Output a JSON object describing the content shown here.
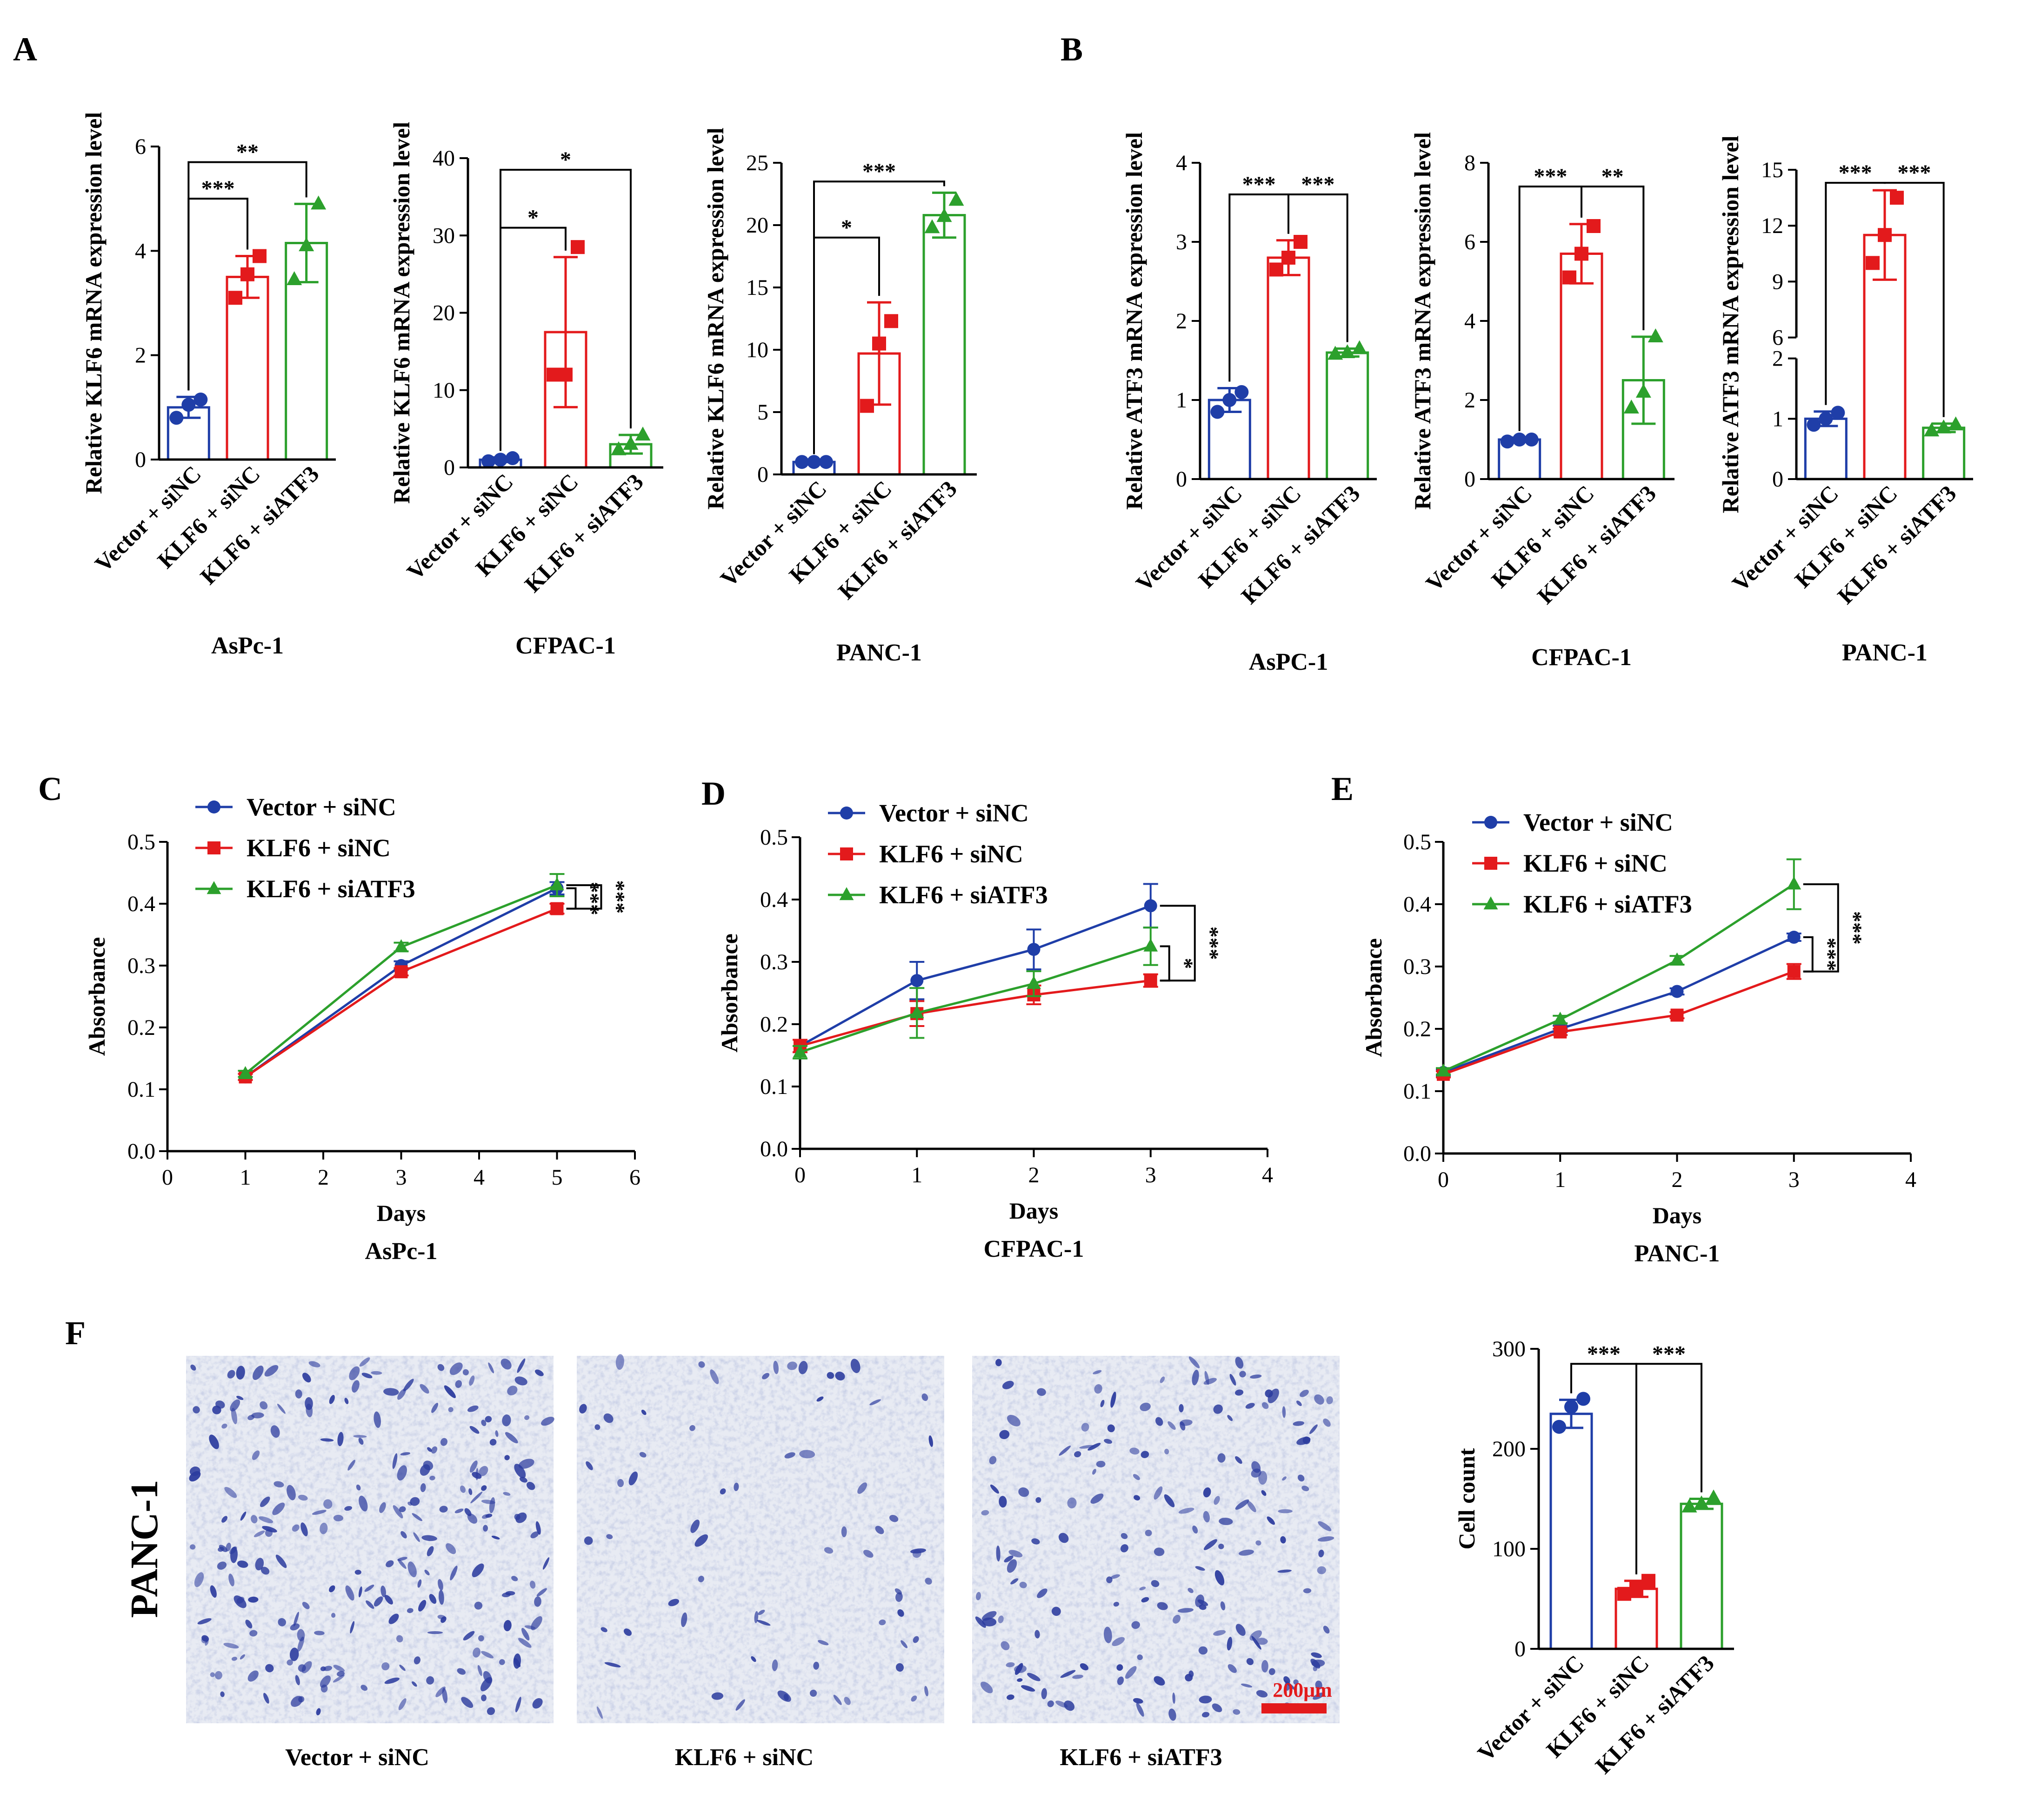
{
  "colors": {
    "vector_siNC": "#1f3ea8",
    "klf6_siNC": "#e31a1c",
    "klf6_siATF3": "#2ca02c",
    "scale_bar": "#e31a1c",
    "stain": "#2c3c9e"
  },
  "markers": {
    "vector_siNC": "circle",
    "klf6_siNC": "square",
    "klf6_siATF3": "triangle"
  },
  "panels": {
    "A": "A",
    "B": "B",
    "C": "C",
    "D": "D",
    "E": "E",
    "F": "F"
  },
  "conditions": [
    "Vector + siNC",
    "KLF6 + siNC",
    "KLF6 + siATF3"
  ],
  "micrograph": {
    "row_label": "PANC-1",
    "scale_bar_label": "200μm",
    "image_labels": [
      "Vector + siNC",
      "KLF6 + siNC",
      "KLF6 + siATF3"
    ]
  },
  "chart_data": [
    {
      "id": "A1",
      "panel": "A",
      "type": "bar",
      "ylabel": "Relative KLF6 mRNA expression level",
      "xlabel": "AsPc-1",
      "categories": [
        "Vector + siNC",
        "KLF6 + siNC",
        "KLF6 + siATF3"
      ],
      "values": [
        1.0,
        3.5,
        4.15
      ],
      "errors": [
        0.2,
        0.4,
        0.75
      ],
      "points": [
        [
          0.8,
          1.05,
          1.15
        ],
        [
          3.1,
          3.55,
          3.9
        ],
        [
          3.45,
          4.1,
          4.9
        ]
      ],
      "ylim": [
        0,
        6
      ],
      "yticks": [
        0,
        2,
        4,
        6
      ],
      "significance": [
        {
          "from": 0,
          "to": 1,
          "label": "***",
          "y": 5.0
        },
        {
          "from": 0,
          "to": 2,
          "label": "**",
          "y": 5.7
        }
      ]
    },
    {
      "id": "A2",
      "panel": "A",
      "type": "bar",
      "ylabel": "Relative KLF6 mRNA expression level",
      "xlabel": "CFPAC-1",
      "categories": [
        "Vector + siNC",
        "KLF6 + siNC",
        "KLF6 + siATF3"
      ],
      "values": [
        1.0,
        17.5,
        3.0
      ],
      "errors": [
        0.3,
        9.7,
        1.2
      ],
      "points": [
        [
          0.8,
          1.0,
          1.2
        ],
        [
          12.0,
          12.0,
          28.5
        ],
        [
          2.3,
          3.0,
          4.2
        ]
      ],
      "ylim": [
        0,
        40
      ],
      "yticks": [
        0,
        10,
        20,
        30,
        40
      ],
      "significance": [
        {
          "from": 0,
          "to": 1,
          "label": "*",
          "y": 31
        },
        {
          "from": 0,
          "to": 2,
          "label": "*",
          "y": 38.5
        }
      ]
    },
    {
      "id": "A3",
      "panel": "A",
      "type": "bar",
      "ylabel": "Relative KLF6 mRNA expression level",
      "xlabel": "PANC-1",
      "categories": [
        "Vector + siNC",
        "KLF6 + siNC",
        "KLF6 + siATF3"
      ],
      "values": [
        1.0,
        9.7,
        20.8
      ],
      "errors": [
        0.1,
        4.1,
        1.8
      ],
      "points": [
        [
          1.0,
          1.0,
          1.0
        ],
        [
          5.5,
          10.5,
          12.3
        ],
        [
          19.8,
          20.7,
          22.0
        ]
      ],
      "ylim": [
        0,
        25
      ],
      "yticks": [
        0,
        5,
        10,
        15,
        20,
        25
      ],
      "significance": [
        {
          "from": 0,
          "to": 1,
          "label": "*",
          "y": 19
        },
        {
          "from": 0,
          "to": 2,
          "label": "***",
          "y": 23.5
        }
      ]
    },
    {
      "id": "B1",
      "panel": "B",
      "type": "bar",
      "ylabel": "Relative ATF3 mRNA expression level",
      "xlabel": "AsPC-1",
      "categories": [
        "Vector + siNC",
        "KLF6 + siNC",
        "KLF6 + siATF3"
      ],
      "values": [
        1.0,
        2.8,
        1.6
      ],
      "errors": [
        0.15,
        0.22,
        0.05
      ],
      "points": [
        [
          0.85,
          1.0,
          1.1
        ],
        [
          2.65,
          2.8,
          3.0
        ],
        [
          1.58,
          1.6,
          1.65
        ]
      ],
      "ylim": [
        0,
        4
      ],
      "yticks": [
        0,
        1,
        2,
        3,
        4
      ],
      "significance": [
        {
          "from": 0,
          "to": 1,
          "label": "***",
          "y": 3.6
        },
        {
          "from": 1,
          "to": 2,
          "label": "***",
          "y": 3.6
        }
      ]
    },
    {
      "id": "B2",
      "panel": "B",
      "type": "bar",
      "ylabel": "Relative ATF3 mRNA expression level",
      "xlabel": "CFPAC-1",
      "categories": [
        "Vector + siNC",
        "KLF6 + siNC",
        "KLF6 + siATF3"
      ],
      "values": [
        1.0,
        5.7,
        2.5
      ],
      "errors": [
        0.05,
        0.75,
        1.1
      ],
      "points": [
        [
          0.95,
          1.0,
          1.0
        ],
        [
          5.1,
          5.7,
          6.4
        ],
        [
          1.8,
          2.2,
          3.6
        ]
      ],
      "ylim": [
        0,
        8
      ],
      "yticks": [
        0,
        2,
        4,
        6,
        8
      ],
      "significance": [
        {
          "from": 0,
          "to": 1,
          "label": "***",
          "y": 7.4
        },
        {
          "from": 1,
          "to": 2,
          "label": "**",
          "y": 7.4
        }
      ]
    },
    {
      "id": "B3",
      "panel": "B",
      "type": "bar",
      "ylabel": "Relative ATF3 mRNA expression level",
      "xlabel": "PANC-1",
      "categories": [
        "Vector + siNC",
        "KLF6 + siNC",
        "KLF6 + siATF3"
      ],
      "values": [
        1.0,
        11.5,
        0.85
      ],
      "errors": [
        0.12,
        2.4,
        0.07
      ],
      "points": [
        [
          0.9,
          1.0,
          1.1
        ],
        [
          10.0,
          11.5,
          13.5
        ],
        [
          0.8,
          0.85,
          0.9
        ]
      ],
      "axis_break": true,
      "ylim_lower": [
        0,
        2
      ],
      "yticks_lower": [
        0,
        1,
        2
      ],
      "ylim_upper": [
        6,
        15
      ],
      "yticks_upper": [
        6,
        9,
        12,
        15
      ],
      "significance": [
        {
          "from": 0,
          "to": 1,
          "label": "***",
          "y": 14.3
        },
        {
          "from": 1,
          "to": 2,
          "label": "***",
          "y": 14.3
        }
      ]
    },
    {
      "id": "C",
      "panel": "C",
      "type": "line",
      "ylabel": "Absorbance",
      "xlabel": "Days",
      "subtitle": "AsPc-1",
      "x": [
        1,
        3,
        5
      ],
      "xlim": [
        0,
        6
      ],
      "xticks": [
        0,
        1,
        2,
        3,
        4,
        5,
        6
      ],
      "ylim": [
        0,
        0.5
      ],
      "yticks": [
        "0.0",
        "0.1",
        "0.2",
        "0.3",
        "0.4",
        "0.5"
      ],
      "series": [
        {
          "name": "Vector + siNC",
          "values": [
            0.12,
            0.3,
            0.425
          ],
          "errors": [
            0.005,
            0.007,
            0.01
          ]
        },
        {
          "name": "KLF6 + siNC",
          "values": [
            0.12,
            0.29,
            0.392
          ],
          "errors": [
            0.005,
            0.006,
            0.008
          ]
        },
        {
          "name": "KLF6 + siATF3",
          "values": [
            0.125,
            0.33,
            0.43
          ],
          "errors": [
            0.005,
            0.007,
            0.018
          ]
        }
      ],
      "significance": [
        {
          "label": "***",
          "between": [
            "Vector + siNC",
            "KLF6 + siNC"
          ]
        },
        {
          "label": "***",
          "between": [
            "KLF6 + siATF3",
            "KLF6 + siNC"
          ]
        }
      ]
    },
    {
      "id": "D",
      "panel": "D",
      "type": "line",
      "ylabel": "Absorbance",
      "xlabel": "Days",
      "subtitle": "CFPAC-1",
      "x": [
        0,
        1,
        2,
        3
      ],
      "xlim": [
        0,
        4
      ],
      "xticks": [
        0,
        1,
        2,
        3,
        4
      ],
      "ylim": [
        0,
        0.5
      ],
      "yticks": [
        "0.0",
        "0.1",
        "0.2",
        "0.3",
        "0.4",
        "0.5"
      ],
      "series": [
        {
          "name": "Vector + siNC",
          "values": [
            0.165,
            0.27,
            0.32,
            0.39
          ],
          "errors": [
            0.01,
            0.03,
            0.032,
            0.035
          ]
        },
        {
          "name": "KLF6 + siNC",
          "values": [
            0.165,
            0.217,
            0.247,
            0.27
          ],
          "errors": [
            0.01,
            0.02,
            0.015,
            0.01
          ]
        },
        {
          "name": "KLF6 + siATF3",
          "values": [
            0.155,
            0.218,
            0.265,
            0.325
          ],
          "errors": [
            0.01,
            0.04,
            0.02,
            0.03
          ]
        }
      ],
      "significance": [
        {
          "label": "*",
          "between": [
            "KLF6 + siATF3",
            "KLF6 + siNC"
          ]
        },
        {
          "label": "***",
          "between": [
            "Vector + siNC",
            "KLF6 + siNC"
          ]
        }
      ]
    },
    {
      "id": "E",
      "panel": "E",
      "type": "line",
      "ylabel": "Absorbance",
      "xlabel": "Days",
      "subtitle": "PANC-1",
      "x": [
        0,
        1,
        2,
        3
      ],
      "xlim": [
        0,
        4
      ],
      "xticks": [
        0,
        1,
        2,
        3,
        4
      ],
      "ylim": [
        0,
        0.5
      ],
      "yticks": [
        "0.0",
        "0.1",
        "0.2",
        "0.3",
        "0.4",
        "0.5"
      ],
      "series": [
        {
          "name": "Vector + siNC",
          "values": [
            0.13,
            0.2,
            0.26,
            0.347
          ],
          "errors": [
            0.005,
            0.005,
            0.005,
            0.006
          ]
        },
        {
          "name": "KLF6 + siNC",
          "values": [
            0.127,
            0.195,
            0.222,
            0.292
          ],
          "errors": [
            0.005,
            0.005,
            0.005,
            0.012
          ]
        },
        {
          "name": "KLF6 + siATF3",
          "values": [
            0.132,
            0.215,
            0.31,
            0.432
          ],
          "errors": [
            0.005,
            0.006,
            0.007,
            0.04
          ]
        }
      ],
      "significance": [
        {
          "label": "***",
          "between": [
            "Vector + siNC",
            "KLF6 + siNC"
          ]
        },
        {
          "label": "***",
          "between": [
            "KLF6 + siATF3",
            "KLF6 + siNC"
          ]
        }
      ]
    },
    {
      "id": "F",
      "panel": "F",
      "type": "bar",
      "ylabel": "Cell count",
      "xlabel": "",
      "categories": [
        "Vector + siNC",
        "KLF6 + siNC",
        "KLF6 + siATF3"
      ],
      "values": [
        235,
        60,
        145
      ],
      "errors": [
        14,
        8,
        5
      ],
      "points": [
        [
          222,
          242,
          250
        ],
        [
          55,
          60,
          68
        ],
        [
          142,
          145,
          151
        ]
      ],
      "ylim": [
        0,
        300
      ],
      "yticks": [
        0,
        100,
        200,
        300
      ],
      "significance": [
        {
          "from": 0,
          "to": 1,
          "label": "***",
          "y": 285
        },
        {
          "from": 1,
          "to": 2,
          "label": "***",
          "y": 285
        }
      ]
    }
  ]
}
